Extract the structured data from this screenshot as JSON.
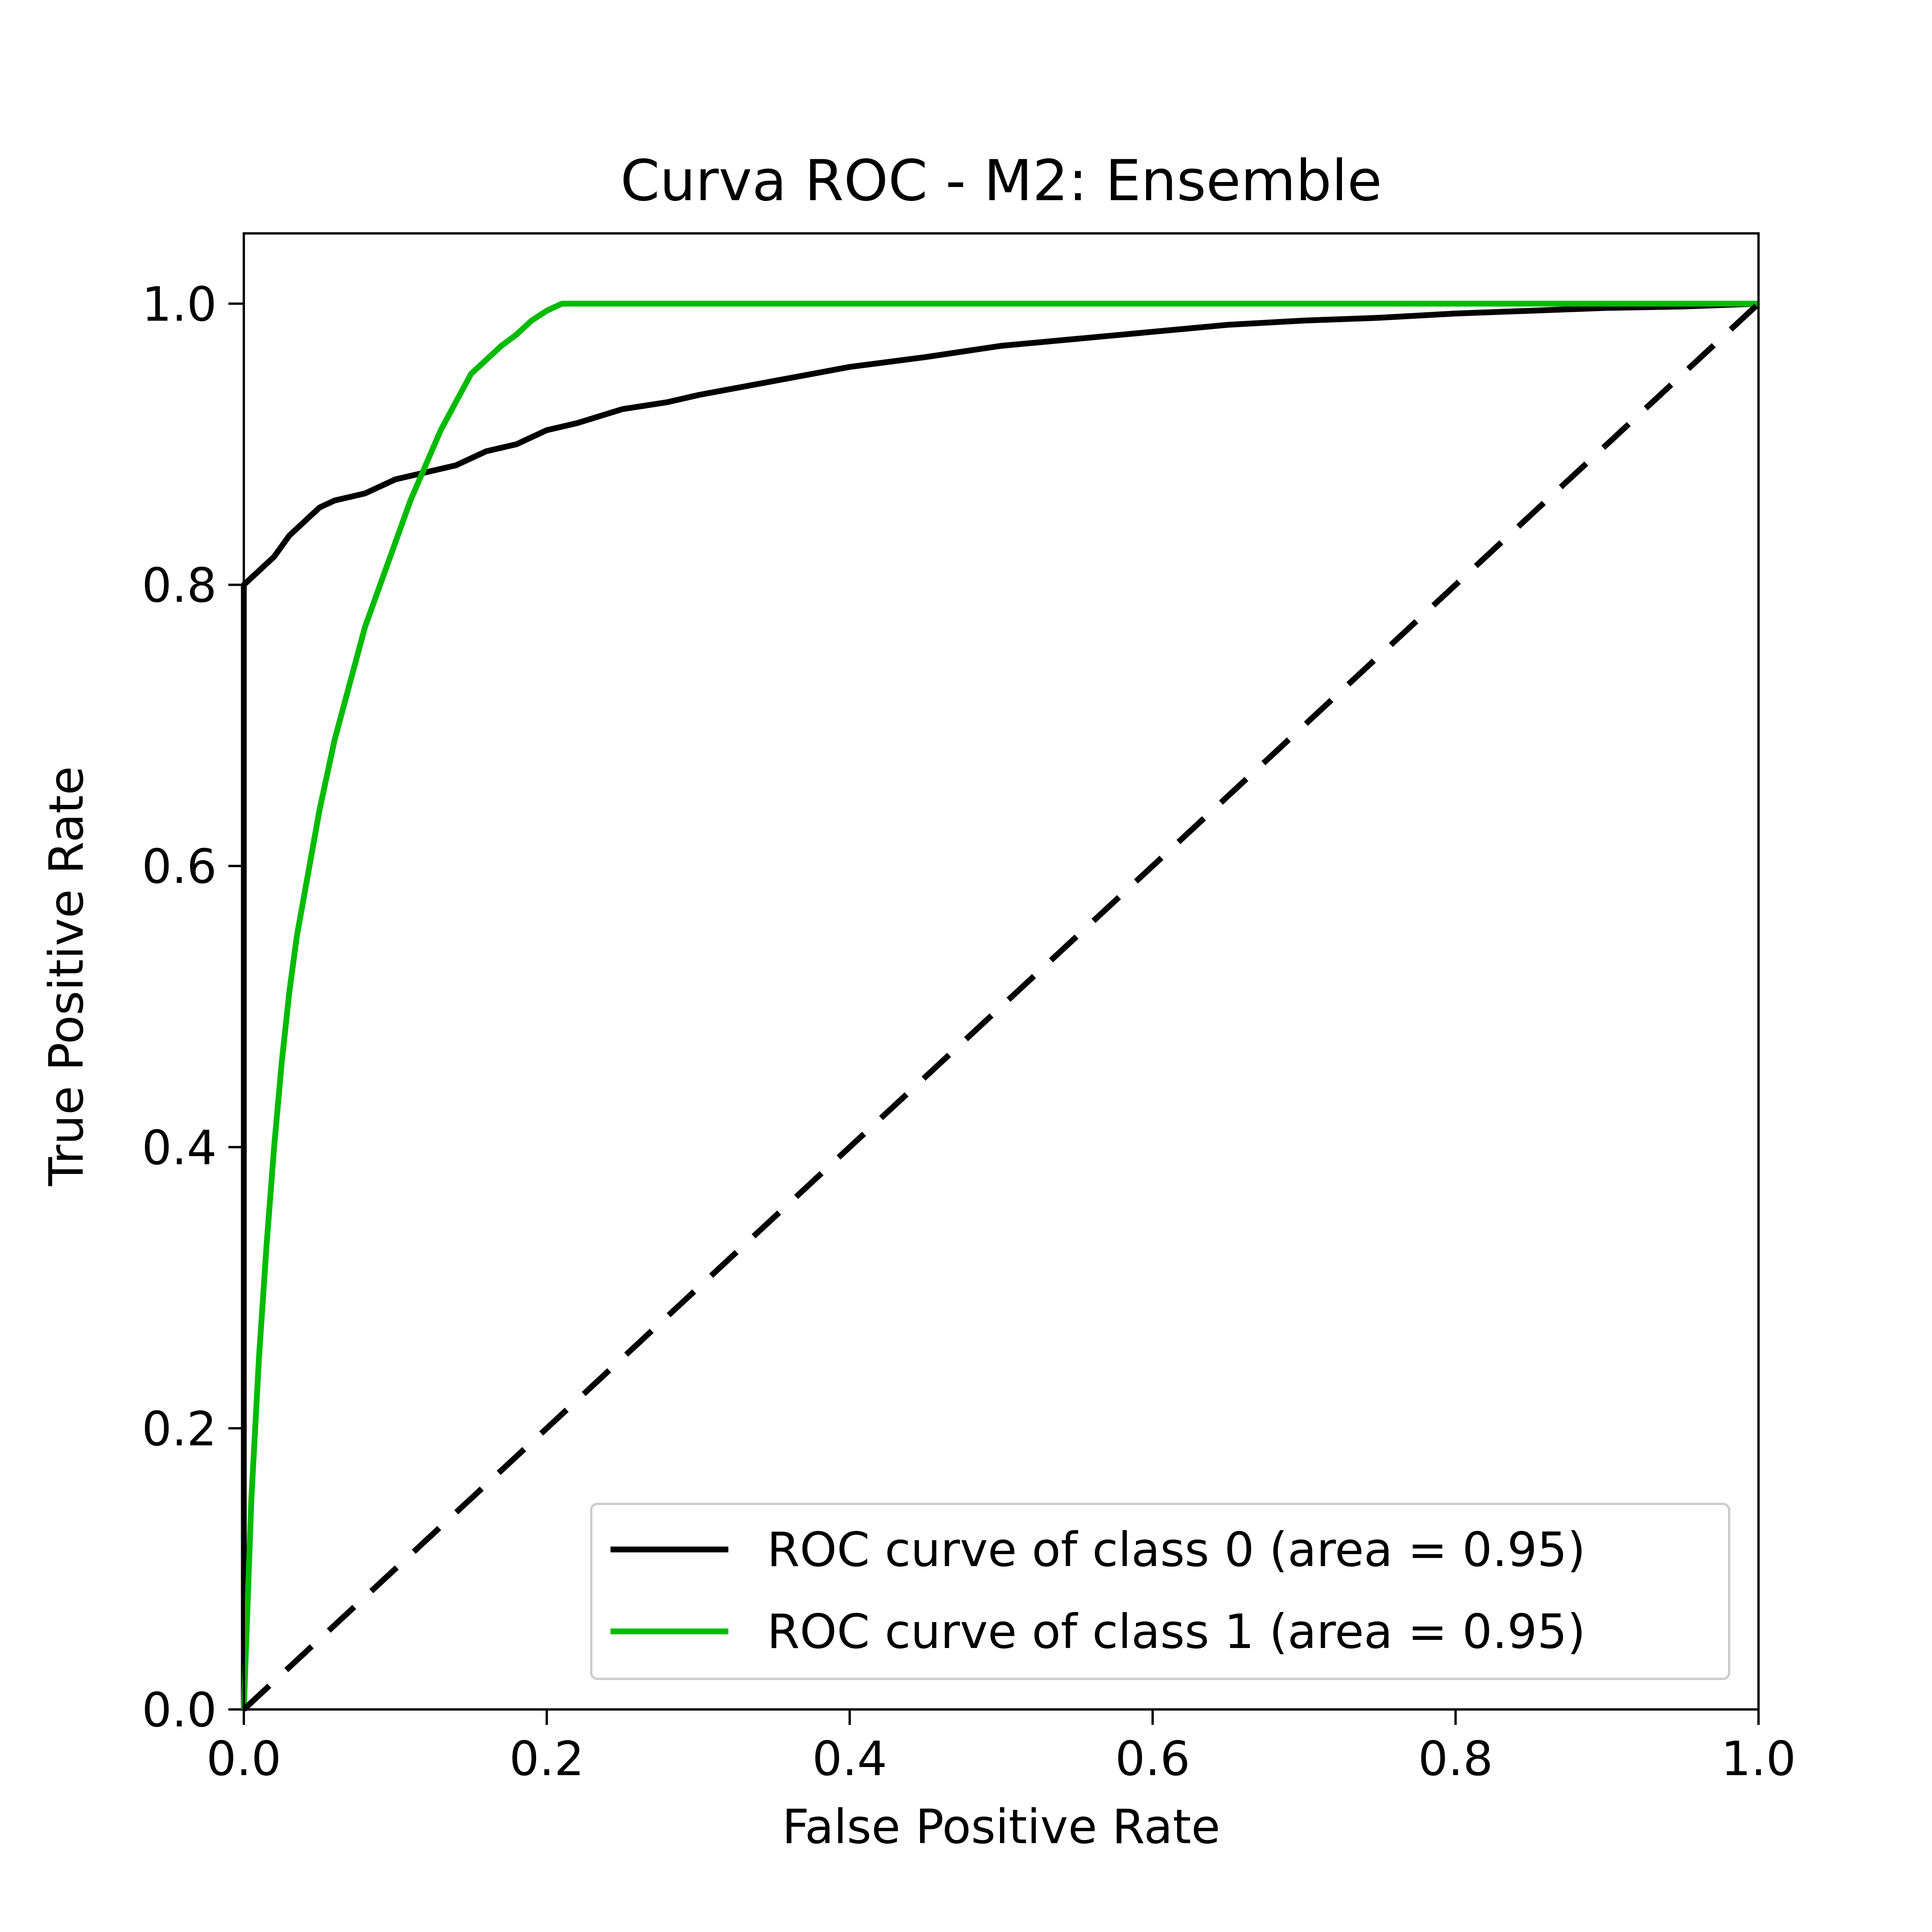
{
  "chart_data": {
    "type": "line",
    "title": "Curva ROC - M2: Ensemble",
    "xlabel": "False Positive Rate",
    "ylabel": "True Positive Rate",
    "xlim": [
      0.0,
      1.0
    ],
    "ylim": [
      0.0,
      1.05
    ],
    "xticks": [
      "0.0",
      "0.2",
      "0.4",
      "0.6",
      "0.8",
      "1.0"
    ],
    "yticks": [
      "0.0",
      "0.2",
      "0.4",
      "0.6",
      "0.8",
      "1.0"
    ],
    "grid": false,
    "legend_position": "lower-right",
    "series": [
      {
        "name": "ROC curve of class 0 (area = 0.95)",
        "color": "#000000",
        "style": "solid",
        "x": [
          0.0,
          0.0,
          0.01,
          0.02,
          0.03,
          0.04,
          0.05,
          0.06,
          0.08,
          0.1,
          0.12,
          0.14,
          0.16,
          0.18,
          0.2,
          0.22,
          0.25,
          0.28,
          0.3,
          0.35,
          0.4,
          0.45,
          0.5,
          0.55,
          0.6,
          0.65,
          0.7,
          0.75,
          0.8,
          0.85,
          0.9,
          0.95,
          1.0
        ],
        "y": [
          0.0,
          0.8,
          0.81,
          0.82,
          0.835,
          0.845,
          0.855,
          0.86,
          0.865,
          0.875,
          0.88,
          0.885,
          0.895,
          0.9,
          0.91,
          0.915,
          0.925,
          0.93,
          0.935,
          0.945,
          0.955,
          0.962,
          0.97,
          0.975,
          0.98,
          0.985,
          0.988,
          0.99,
          0.993,
          0.995,
          0.997,
          0.998,
          1.0
        ]
      },
      {
        "name": "ROC curve of class 1 (area = 0.95)",
        "color": "#00bb00",
        "style": "solid",
        "x": [
          0.0,
          0.005,
          0.01,
          0.015,
          0.02,
          0.025,
          0.03,
          0.035,
          0.04,
          0.045,
          0.05,
          0.06,
          0.07,
          0.08,
          0.09,
          0.1,
          0.11,
          0.12,
          0.13,
          0.14,
          0.15,
          0.16,
          0.17,
          0.18,
          0.19,
          0.2,
          0.21,
          1.0
        ],
        "y": [
          0.0,
          0.15,
          0.25,
          0.33,
          0.4,
          0.46,
          0.51,
          0.55,
          0.58,
          0.61,
          0.64,
          0.69,
          0.73,
          0.77,
          0.8,
          0.83,
          0.86,
          0.885,
          0.91,
          0.93,
          0.95,
          0.96,
          0.97,
          0.978,
          0.988,
          0.995,
          1.0,
          1.0
        ]
      },
      {
        "name": "",
        "color": "#000000",
        "style": "dashed",
        "x": [
          0.0,
          1.0
        ],
        "y": [
          0.0,
          1.0
        ]
      }
    ]
  }
}
